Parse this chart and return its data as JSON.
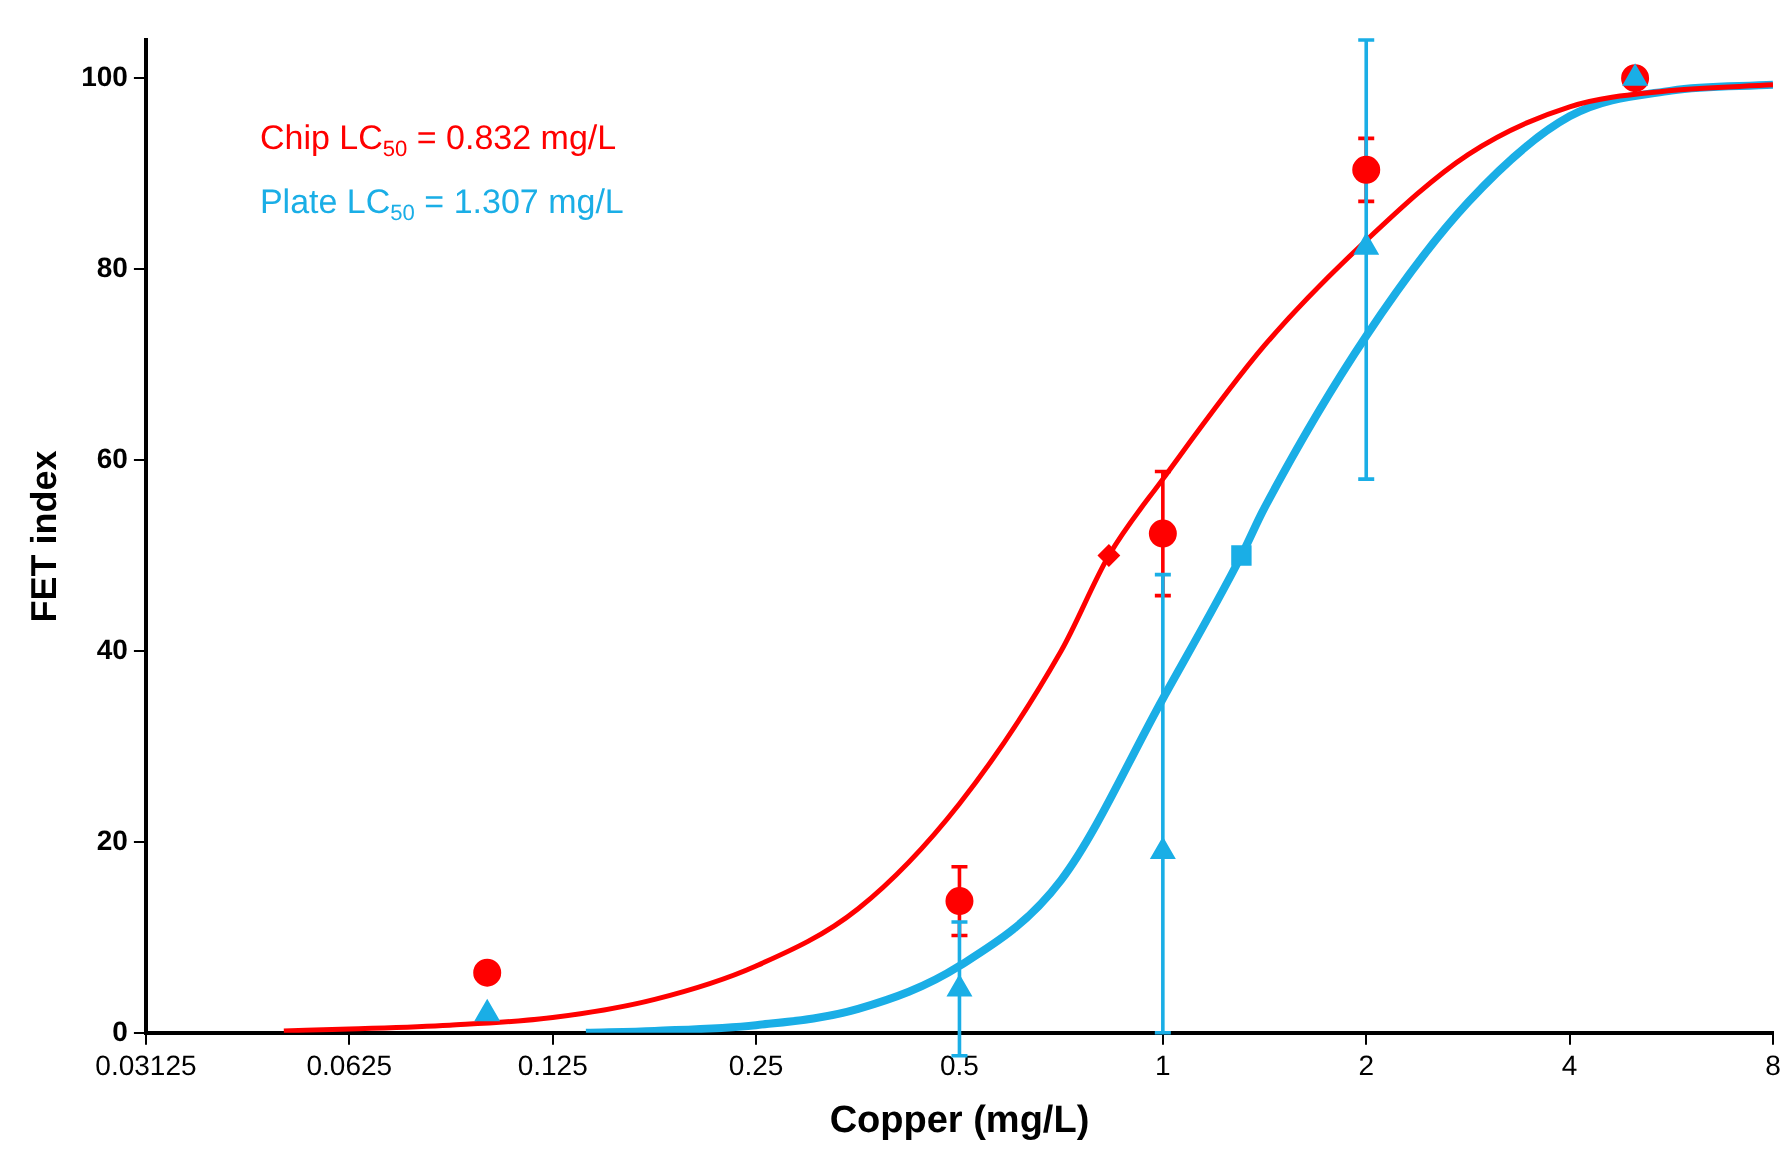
{
  "chart_data": {
    "type": "scatter",
    "xlabel": "Copper (mg/L)",
    "ylabel": "FET index",
    "log": "x",
    "xlim": [
      0.03125,
      8
    ],
    "xticks": [
      0.03125,
      0.0625,
      0.125,
      0.25,
      0.5,
      1,
      2,
      4,
      8
    ],
    "ylim": [
      0,
      104
    ],
    "yticks": [
      0,
      20,
      40,
      60,
      80,
      100
    ],
    "grid": false,
    "legend": false,
    "annotations": [
      "Chip LC$_{50}$ = 0.832 mg/L",
      "Plate LC$_{50}$ = 1.307 mg/L"
    ],
    "series": [
      {
        "type": "scatter",
        "color": "#ff0000",
        "marker": "circle",
        "x": [
          0.1,
          0.5,
          1,
          2,
          5
        ],
        "values": [
          6.3,
          13.8,
          52.3,
          90.4,
          100
        ],
        "errors": [
          null,
          3.6,
          6.5,
          3.3,
          null
        ]
      },
      {
        "type": "scatter",
        "color": "#1aaee6",
        "marker": "triangle",
        "x": [
          0.1,
          0.5,
          1,
          2,
          5
        ],
        "values": [
          2,
          4.6,
          19,
          82.3,
          100
        ],
        "errors": [
          null,
          7,
          [
            0,
            48
          ],
          [
            58,
            104
          ],
          null
        ]
      },
      {
        "type": "line",
        "color": "#ff0000",
        "marker": "none",
        "x": [
          0.05,
          0.0625,
          0.088,
          0.125,
          0.177,
          0.25,
          0.354,
          0.5,
          0.707,
          0.832,
          1,
          1.414,
          2,
          2.83,
          4,
          5.66,
          8
        ],
        "values": [
          0.2,
          0.4,
          0.8,
          1.6,
          3.5,
          7,
          13,
          24,
          40,
          50,
          58,
          72,
          83,
          92,
          97,
          98.7,
          99.3
        ]
      },
      {
        "type": "line",
        "color": "#1aaee6",
        "marker": "none",
        "x": [
          0.14,
          0.177,
          0.25,
          0.354,
          0.5,
          0.707,
          1,
          1.307,
          1.414,
          2,
          2.83,
          4,
          5.66,
          8
        ],
        "values": [
          0,
          0.2,
          0.8,
          2.5,
          7,
          16,
          35,
          50,
          55,
          73,
          87,
          96,
          98.7,
          99.3
        ]
      },
      {
        "type": "scatter",
        "color": "#ff0000",
        "marker": "diamond",
        "x": [
          0.832
        ],
        "values": [
          50
        ]
      },
      {
        "type": "scatter",
        "color": "#1aaee6",
        "marker": "square",
        "x": [
          1.307
        ],
        "values": [
          50
        ]
      }
    ]
  }
}
